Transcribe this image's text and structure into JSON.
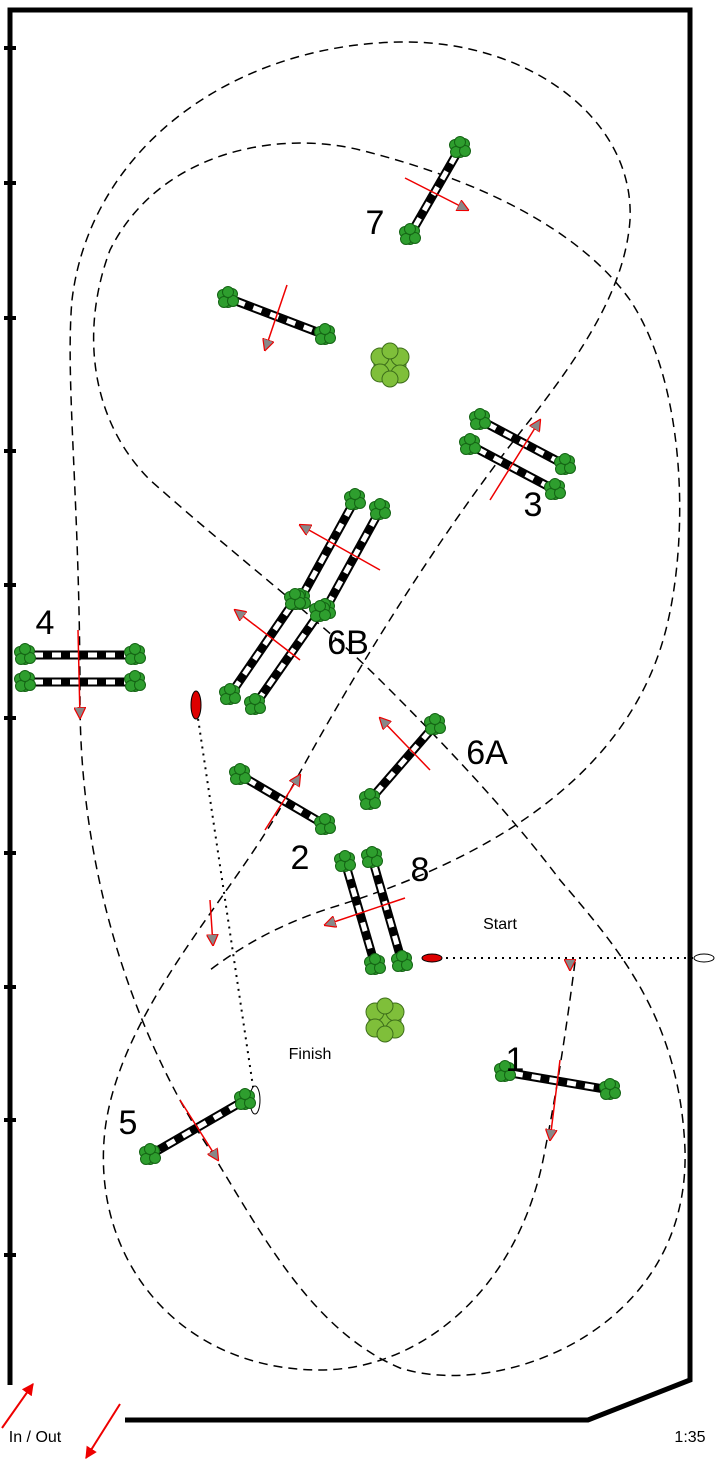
{
  "jumps": [
    {
      "label": "1"
    },
    {
      "label": "2"
    },
    {
      "label": "3"
    },
    {
      "label": "4"
    },
    {
      "label": "5"
    },
    {
      "label": "6A"
    },
    {
      "label": "6B"
    },
    {
      "label": "7"
    },
    {
      "label": "8"
    }
  ],
  "start": "Start",
  "finish": "Finish",
  "entrance": "In / Out",
  "scale": "1:35"
}
